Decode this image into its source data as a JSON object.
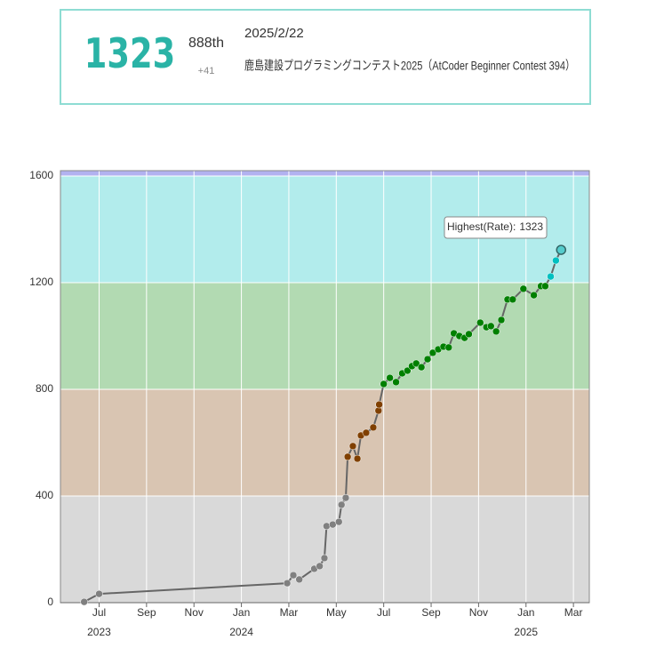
{
  "header": {
    "rating": 1323,
    "rank": "888th",
    "diff": "+41",
    "date": "2025/2/22",
    "contest": "鹿島建設プログラミングコンテスト2025（AtCoder Beginner Contest 394）"
  },
  "chart_data": {
    "type": "line",
    "x": [
      5.37,
      6.0,
      13.93,
      14.19,
      14.44,
      15.07,
      15.3,
      15.5,
      15.59,
      15.85,
      16.11,
      16.22,
      16.4,
      16.48,
      16.7,
      16.89,
      17.04,
      17.26,
      17.56,
      17.78,
      17.81,
      18.0,
      18.26,
      18.52,
      18.78,
      19.0,
      19.19,
      19.37,
      19.59,
      19.85,
      20.07,
      20.3,
      20.52,
      20.74,
      20.96,
      21.19,
      21.41,
      21.59,
      22.07,
      22.33,
      22.52,
      22.74,
      22.96,
      23.22,
      23.44,
      23.89,
      24.33,
      24.63,
      24.81,
      25.04,
      25.26,
      25.48
    ],
    "series": [
      {
        "name": "Rate",
        "color": "#666666",
        "values": [
          3,
          33,
          73,
          103,
          87,
          127,
          137,
          167,
          287,
          293,
          303,
          367,
          393,
          547,
          587,
          540,
          627,
          637,
          657,
          720,
          743,
          820,
          843,
          827,
          860,
          870,
          887,
          897,
          883,
          913,
          937,
          950,
          960,
          957,
          1010,
          1000,
          993,
          1007,
          1050,
          1033,
          1037,
          1017,
          1060,
          1137,
          1137,
          1177,
          1153,
          1187,
          1187,
          1223,
          1283,
          1323
        ]
      }
    ],
    "xlim": [
      4.37,
      26.67
    ],
    "ylim": [
      0,
      1620
    ],
    "xticks": [
      {
        "value": 6,
        "label": "Jul"
      },
      {
        "value": 8,
        "label": "Sep"
      },
      {
        "value": 10,
        "label": "Nov"
      },
      {
        "value": 12,
        "label": "Jan"
      },
      {
        "value": 14,
        "label": "Mar"
      },
      {
        "value": 16,
        "label": "May"
      },
      {
        "value": 18,
        "label": "Jul"
      },
      {
        "value": 20,
        "label": "Sep"
      },
      {
        "value": 22,
        "label": "Nov"
      },
      {
        "value": 24,
        "label": "Jan"
      },
      {
        "value": 26,
        "label": "Mar"
      }
    ],
    "year_labels": [
      {
        "value": 6,
        "label": "2023"
      },
      {
        "value": 12,
        "label": "2024"
      },
      {
        "value": 24,
        "label": "2025"
      }
    ],
    "yticks": [
      0,
      400,
      800,
      1200,
      1600
    ],
    "bands": [
      {
        "from": 0,
        "to": 400,
        "color": "#d9d9d9",
        "point": "#808080"
      },
      {
        "from": 400,
        "to": 800,
        "color": "#d9c5b2",
        "point": "#804000"
      },
      {
        "from": 800,
        "to": 1200,
        "color": "#b2dab2",
        "point": "#008000"
      },
      {
        "from": 1200,
        "to": 1600,
        "color": "#b2ecec",
        "point": "#00c0c0"
      },
      {
        "from": 1600,
        "to": 2000,
        "color": "#b2b2f0",
        "point": "#0000ff"
      }
    ],
    "tooltip": {
      "label": "Highest(Rate):",
      "value": 1323
    },
    "grid": true
  }
}
